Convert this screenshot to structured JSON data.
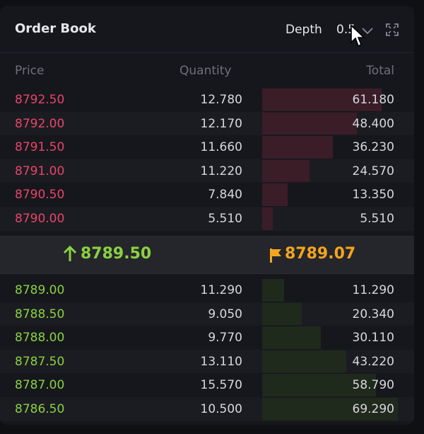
{
  "header": {
    "title": "Order Book",
    "depth_label": "Depth",
    "depth_value": "0.5"
  },
  "columns": {
    "price": "Price",
    "quantity": "Quantity",
    "total": "Total"
  },
  "asks": [
    {
      "price": "8792.50",
      "quantity": "12.780",
      "total": "61.180",
      "depth_fraction": 0.88
    },
    {
      "price": "8792.00",
      "quantity": "12.170",
      "total": "48.400",
      "depth_fraction": 0.7
    },
    {
      "price": "8791.50",
      "quantity": "11.660",
      "total": "36.230",
      "depth_fraction": 0.52
    },
    {
      "price": "8791.00",
      "quantity": "11.220",
      "total": "24.570",
      "depth_fraction": 0.35
    },
    {
      "price": "8790.50",
      "quantity": "7.840",
      "total": "13.350",
      "depth_fraction": 0.19
    },
    {
      "price": "8790.00",
      "quantity": "5.510",
      "total": "5.510",
      "depth_fraction": 0.08
    }
  ],
  "spread": {
    "last_price": "8789.50",
    "mark_price": "8789.07",
    "last_color": "#8bd140",
    "mark_color": "#f3a51e",
    "last_icon": "arrow-up-icon",
    "mark_icon": "flag-icon"
  },
  "bids": [
    {
      "price": "8789.00",
      "quantity": "11.290",
      "total": "11.290",
      "depth_fraction": 0.16
    },
    {
      "price": "8788.50",
      "quantity": "9.050",
      "total": "20.340",
      "depth_fraction": 0.29
    },
    {
      "price": "8788.00",
      "quantity": "9.770",
      "total": "30.110",
      "depth_fraction": 0.43
    },
    {
      "price": "8787.50",
      "quantity": "13.110",
      "total": "43.220",
      "depth_fraction": 0.62
    },
    {
      "price": "8787.00",
      "quantity": "15.570",
      "total": "58.790",
      "depth_fraction": 0.84
    },
    {
      "price": "8786.50",
      "quantity": "10.500",
      "total": "69.290",
      "depth_fraction": 1.0
    }
  ],
  "colors": {
    "ask": "#e8456a",
    "bid": "#8bd140",
    "background": "#16171c"
  }
}
